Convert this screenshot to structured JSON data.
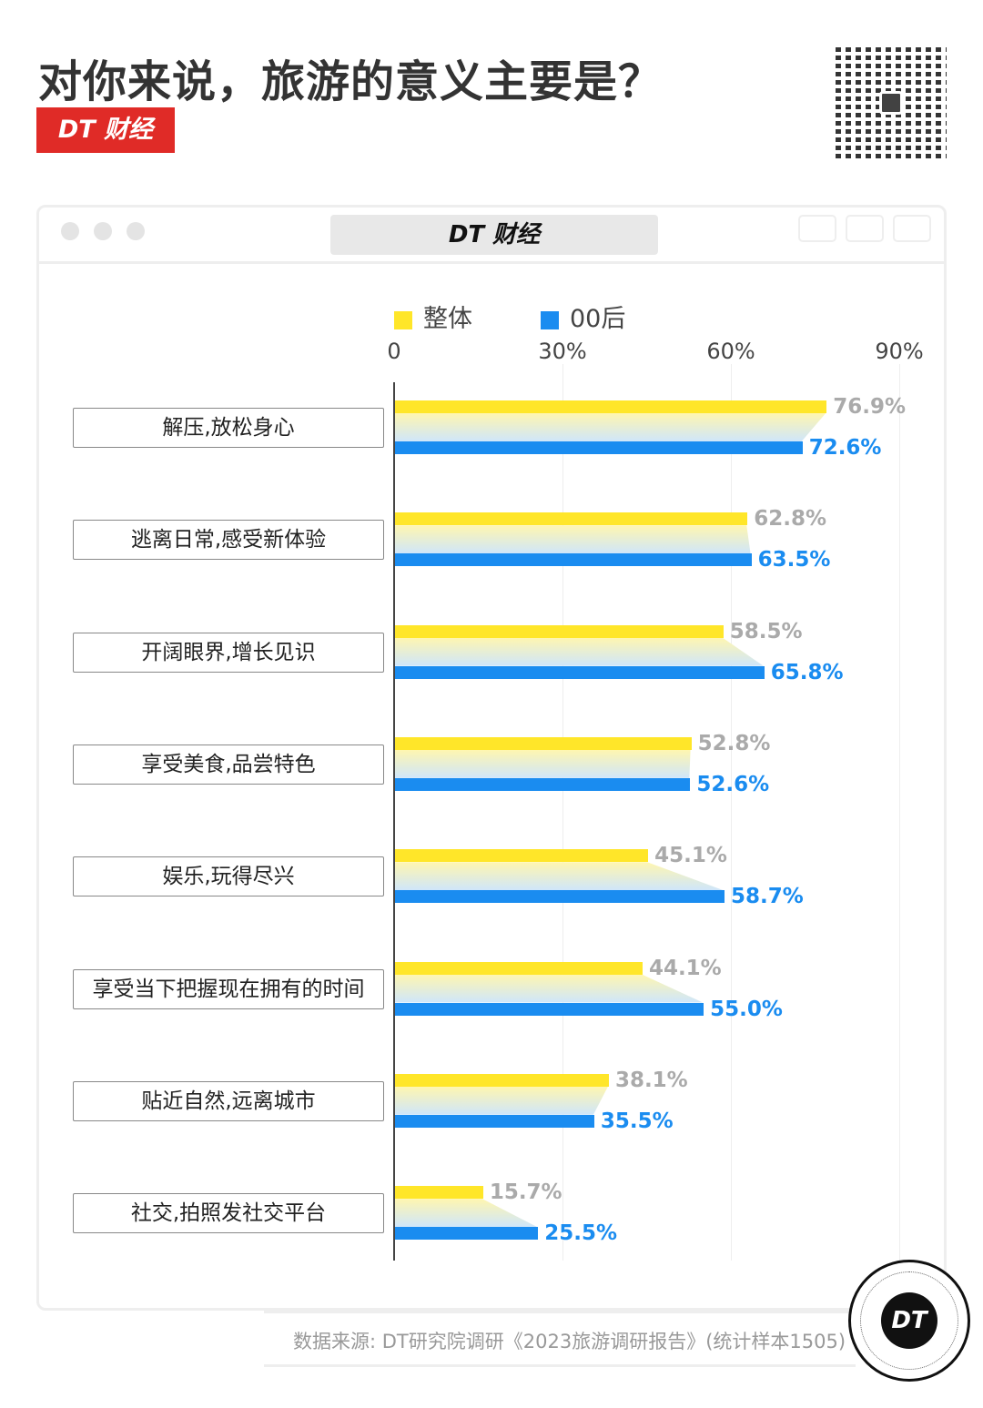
{
  "header": {
    "title": "对你来说，旅游的意义主要是？",
    "brand": "DT 财经"
  },
  "window": {
    "title": "DT 财经"
  },
  "chart_data": {
    "type": "bar",
    "orientation": "horizontal",
    "categories": [
      "解压,放松身心",
      "逃离日常,感受新体验",
      "开阔眼界,增长见识",
      "享受美食,品尝特色",
      "娱乐,玩得尽兴",
      "享受当下把握现在拥有的时间",
      "贴近自然,远离城市",
      "社交,拍照发社交平台"
    ],
    "series": [
      {
        "name": "整体",
        "color": "#ffe629",
        "values": [
          76.9,
          62.8,
          58.5,
          52.8,
          45.1,
          44.1,
          38.1,
          15.7
        ],
        "labels": [
          "76.9%",
          "62.8%",
          "58.5%",
          "52.8%",
          "45.1%",
          "44.1%",
          "38.1%",
          "15.7%"
        ]
      },
      {
        "name": "00后",
        "color": "#1a8cf0",
        "values": [
          72.6,
          63.5,
          65.8,
          52.6,
          58.7,
          55.0,
          35.5,
          25.5
        ],
        "labels": [
          "72.6%",
          "63.5%",
          "65.8%",
          "52.6%",
          "58.7%",
          "55.0%",
          "35.5%",
          "25.5%"
        ]
      }
    ],
    "xlim": [
      0,
      90
    ],
    "ticks": [
      "0",
      "30%",
      "60%",
      "90%"
    ],
    "grid": true,
    "legend": "top"
  },
  "footer": {
    "source": "数据来源: DT研究院调研《2023旅游调研报告》(统计样本1505)",
    "stamp": "DT"
  }
}
